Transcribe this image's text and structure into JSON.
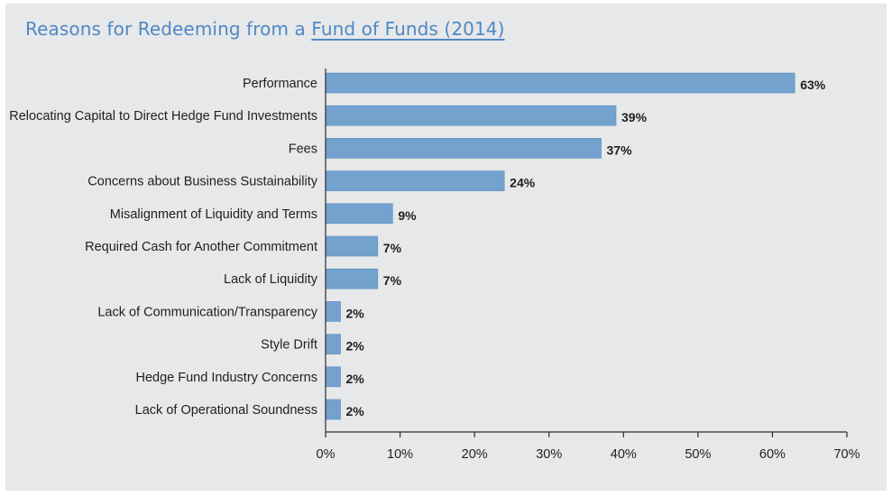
{
  "title": {
    "prefix": "Reasons for Redeeming from a ",
    "link": "Fund of Funds (2014)"
  },
  "colors": {
    "bar": "#74a2cf",
    "bar_stroke": "#5d8dbd",
    "axis": "#2b2b2b",
    "title": "#4f88c4",
    "panel": "#e7e8ea"
  },
  "chart_data": {
    "type": "bar",
    "orientation": "horizontal",
    "categories": [
      "Performance",
      "Relocating Capital to Direct Hedge Fund Investments",
      "Fees",
      "Concerns about Business Sustainability",
      "Misalignment of Liquidity and Terms",
      "Required Cash for Another Commitment",
      "Lack of Liquidity",
      "Lack of Communication/Transparency",
      "Style Drift",
      "Hedge Fund Industry Concerns",
      "Lack of Operational Soundness"
    ],
    "values": [
      63,
      39,
      37,
      24,
      9,
      7,
      7,
      2,
      2,
      2,
      2
    ],
    "value_labels": [
      "63%",
      "39%",
      "37%",
      "24%",
      "9%",
      "7%",
      "7%",
      "2%",
      "2%",
      "2%",
      "2%"
    ],
    "xlim": [
      0,
      70
    ],
    "xticks": [
      0,
      10,
      20,
      30,
      40,
      50,
      60,
      70
    ],
    "xtick_labels": [
      "0%",
      "10%",
      "20%",
      "30%",
      "40%",
      "50%",
      "60%",
      "70%"
    ],
    "grid": false,
    "legend": "none"
  }
}
